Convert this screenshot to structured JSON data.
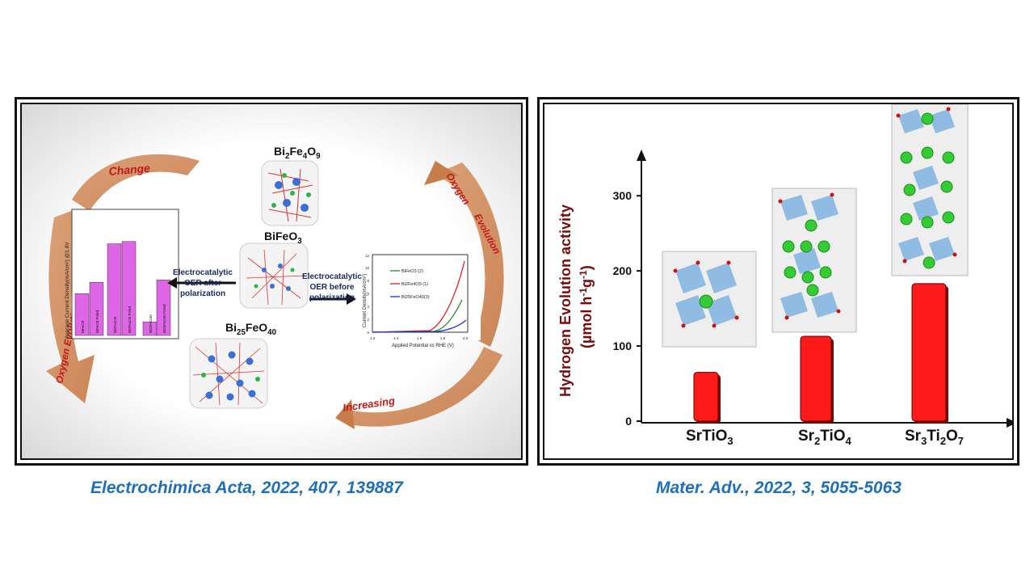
{
  "left_figure": {
    "cycle_labels": {
      "change": "Change",
      "oxygen_evolution_left": "Oxygen Evolution",
      "oxygen_top": "Oxygen",
      "evolution_right": "Evolution",
      "increasing": "Increasing"
    },
    "compounds": {
      "bi2fe4o9": "Bi2Fe4O9",
      "bifeo3": "BiFeO3",
      "bi25feo40": "Bi25FeO40"
    },
    "oer_after": [
      "Electrocatalytic",
      "OER after",
      "polarization"
    ],
    "oer_before": [
      "Electrocatalytic",
      "OER before",
      "polarization"
    ],
    "bar_inset": {
      "ylabel": "Average Current Density(mA/cm²) @1.8V",
      "bars": [
        {
          "label": "BiFeO3",
          "value": 3.7,
          "color": "#e066e8"
        },
        {
          "label": "BiFeO3 Poled",
          "value": 4.7,
          "color": "#e066e8"
        },
        {
          "label": "Bi2Fe4O9",
          "value": 8.1,
          "color": "#e066e8"
        },
        {
          "label": "Bi2Fe4O9 Poled",
          "value": 8.3,
          "color": "#e066e8"
        },
        {
          "label": "Bi25FeO40",
          "value": 1.2,
          "color": "#e066e8"
        },
        {
          "label": "Bi25FeO40 Poled",
          "value": 4.9,
          "color": "#e066e8"
        }
      ]
    },
    "lsv_inset": {
      "xlabel": "Applied Potential vs RHE (V)",
      "ylabel": "Current Density(mA/cm²)",
      "x_ticks": [
        "1.2",
        "1.4",
        "1.6",
        "1.8",
        "2.0"
      ],
      "y_ticks": [
        "0",
        "2",
        "4",
        "6",
        "8",
        "10",
        "12"
      ],
      "legend": [
        "BiFeO3 (2)",
        "Bi2Fe4O9 (1)",
        "Bi25FeO40(3)"
      ],
      "colors": [
        "#2a8a2a",
        "#e02020",
        "#2030c8"
      ]
    }
  },
  "right_figure": {
    "chart_data": {
      "type": "bar",
      "categories": [
        "SrTiO3",
        "Sr2TiO4",
        "Sr3Ti2O7"
      ],
      "values": [
        65,
        113,
        183
      ],
      "ylabel": "Hydrogen Evolution activity (µmol h-1g-1)",
      "ylim": [
        0,
        340
      ],
      "y_ticks": [
        "0",
        "100",
        "200",
        "300"
      ],
      "bar_color": "#ff1a1a"
    },
    "ylabel_line1": "Hydrogen Evolution activity",
    "ylabel_line2_parts": [
      "(µmol h",
      "-1",
      "g",
      "-1",
      ")"
    ],
    "x_labels": [
      {
        "parts": [
          "SrTiO",
          "3"
        ]
      },
      {
        "parts": [
          "Sr",
          "2",
          "TiO",
          "4"
        ]
      },
      {
        "parts": [
          "Sr",
          "3",
          "Ti",
          "2",
          "O",
          "7"
        ]
      }
    ]
  },
  "captions": {
    "left": "Electrochimica Acta, 2022, 407, 139887",
    "right": "Mater. Adv., 2022, 3, 5055-5063"
  }
}
